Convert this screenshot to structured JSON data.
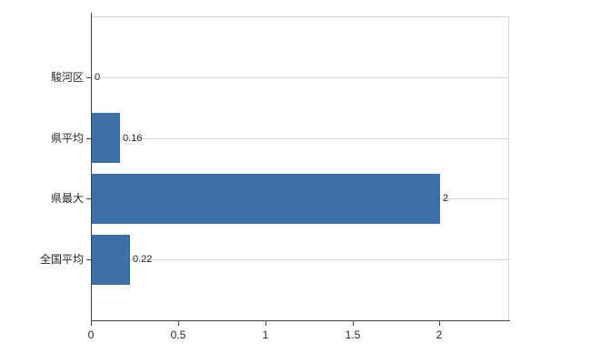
{
  "chart_data": {
    "type": "bar",
    "orientation": "horizontal",
    "title": "",
    "xlabel": "",
    "ylabel": "",
    "categories": [
      "駿河区",
      "県平均",
      "県最大",
      "全国平均"
    ],
    "values": [
      0,
      0.16,
      2,
      0.22
    ],
    "value_labels": [
      "0",
      "0.16",
      "2",
      "0.22"
    ],
    "x_ticks": [
      0,
      0.5,
      1,
      1.5,
      2
    ],
    "x_tick_labels": [
      "0",
      "0.5",
      "1",
      "1.5",
      "2"
    ],
    "xlim": [
      0,
      2.4
    ],
    "grid": true,
    "legend": "none",
    "colors": {
      "bar": "#3d6fa7",
      "axis": "#404040",
      "grid": "#d9d9d9",
      "text": "#262626",
      "background": "#ffffff"
    }
  }
}
